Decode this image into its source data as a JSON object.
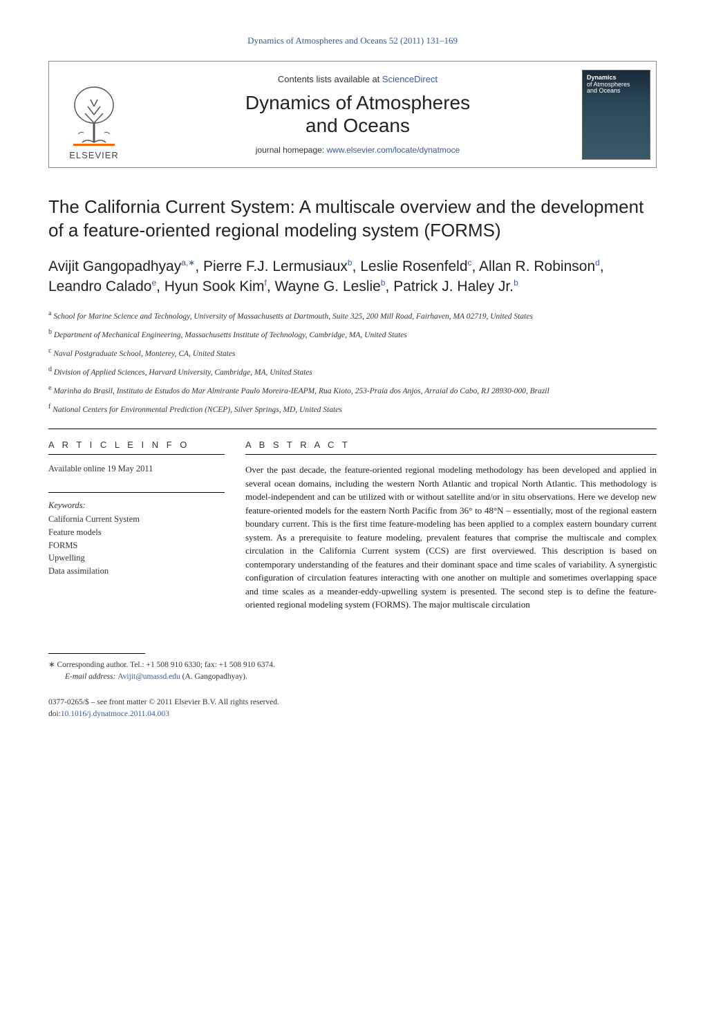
{
  "journal_ref": "Dynamics of Atmospheres and Oceans 52 (2011) 131–169",
  "header": {
    "contents_prefix": "Contents lists available at ",
    "contents_link": "ScienceDirect",
    "journal_name_line1": "Dynamics of Atmospheres",
    "journal_name_line2": "and Oceans",
    "homepage_prefix": "journal homepage: ",
    "homepage_link": "www.elsevier.com/locate/dynatmoce",
    "publisher_logo_text": "ELSEVIER",
    "cover_caption_line1": "Dynamics",
    "cover_caption_line2": "of Atmospheres",
    "cover_caption_line3": "and Oceans"
  },
  "title": "The California Current System: A multiscale overview and the development of a feature-oriented regional modeling system (FORMS)",
  "authors_html": "Avijit Gangopadhyay<sup>a,∗</sup>, Pierre F.J. Lermusiaux<sup>b</sup>, Leslie Rosenfeld<sup>c</sup>, Allan R. Robinson<sup>d</sup>, Leandro Calado<sup>e</sup>, Hyun Sook Kim<sup>f</sup>, Wayne G. Leslie<sup>b</sup>, Patrick J. Haley Jr.<sup>b</sup>",
  "affiliations": [
    {
      "sup": "a",
      "text": "School for Marine Science and Technology, University of Massachusetts at Dartmouth, Suite 325, 200 Mill Road, Fairhaven, MA 02719, United States"
    },
    {
      "sup": "b",
      "text": "Department of Mechanical Engineering, Massachusetts Institute of Technology, Cambridge, MA, United States"
    },
    {
      "sup": "c",
      "text": "Naval Postgraduate School, Monterey, CA, United States"
    },
    {
      "sup": "d",
      "text": "Division of Applied Sciences, Harvard University, Cambridge, MA, United States"
    },
    {
      "sup": "e",
      "text": "Marinha do Brasil, Instituto de Estudos do Mar Almirante Paulo Moreira-IEAPM, Rua Kioto, 253-Praia dos Anjos, Arraial do Cabo, RJ 28930-000, Brazil"
    },
    {
      "sup": "f",
      "text": "National Centers for Environmental Prediction (NCEP), Silver Springs, MD, United States"
    }
  ],
  "article_info": {
    "heading": "A R T I C L E   I N F O",
    "available": "Available online 19 May 2011",
    "keywords_label": "Keywords:",
    "keywords": [
      "California Current System",
      "Feature models",
      "FORMS",
      "Upwelling",
      "Data assimilation"
    ]
  },
  "abstract": {
    "heading": "A B S T R A C T",
    "text": "Over the past decade, the feature-oriented regional modeling methodology has been developed and applied in several ocean domains, including the western North Atlantic and tropical North Atlantic. This methodology is model-independent and can be utilized with or without satellite and/or in situ observations. Here we develop new feature-oriented models for the eastern North Pacific from 36° to 48°N – essentially, most of the regional eastern boundary current. This is the first time feature-modeling has been applied to a complex eastern boundary current system. As a prerequisite to feature modeling, prevalent features that comprise the multiscale and complex circulation in the California Current system (CCS) are first overviewed. This description is based on contemporary understanding of the features and their dominant space and time scales of variability. A synergistic configuration of circulation features interacting with one another on multiple and sometimes overlapping space and time scales as a meander-eddy-upwelling system is presented. The second step is to define the feature-oriented regional modeling system (FORMS). The major multiscale circulation"
  },
  "footnote": {
    "corr": "∗ Corresponding author. Tel.: +1 508 910 6330; fax: +1 508 910 6374.",
    "email_label": "E-mail address: ",
    "email": "Avijit@umassd.edu",
    "email_suffix": " (A. Gangopadhyay)."
  },
  "copyright": {
    "line1": "0377-0265/$ – see front matter © 2011 Elsevier B.V. All rights reserved.",
    "doi_prefix": "doi:",
    "doi": "10.1016/j.dynatmoce.2011.04.003"
  },
  "colors": {
    "link": "#3b5998",
    "text": "#1a1a1a",
    "muted": "#333333",
    "border": "#888888",
    "background": "#ffffff",
    "cover_top": "#1a2a3a",
    "cover_bottom": "#3a5a6a",
    "elsevier_orange": "#ff6600"
  }
}
